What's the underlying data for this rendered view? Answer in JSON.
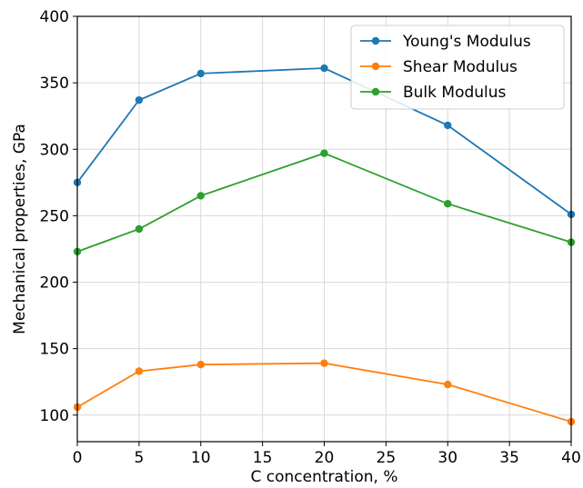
{
  "chart_data": {
    "type": "line",
    "title": "",
    "xlabel": "C concentration, %",
    "ylabel": "Mechanical properties, GPa",
    "xlim": [
      0,
      40
    ],
    "ylim": [
      80,
      400
    ],
    "xticks": [
      0,
      5,
      10,
      15,
      20,
      25,
      30,
      35,
      40
    ],
    "yticks": [
      100,
      150,
      200,
      250,
      300,
      350,
      400
    ],
    "grid": true,
    "legend_position": "top-right",
    "x": [
      0,
      5,
      10,
      20,
      30,
      40
    ],
    "series": [
      {
        "name": "Young's Modulus",
        "color": "#1f77b4",
        "values": [
          275,
          337,
          357,
          361,
          318,
          251
        ]
      },
      {
        "name": "Shear Modulus",
        "color": "#ff7f0e",
        "values": [
          106,
          133,
          138,
          139,
          123,
          95
        ]
      },
      {
        "name": "Bulk Modulus",
        "color": "#2ca02c",
        "values": [
          223,
          240,
          265,
          297,
          259,
          230
        ]
      }
    ]
  }
}
